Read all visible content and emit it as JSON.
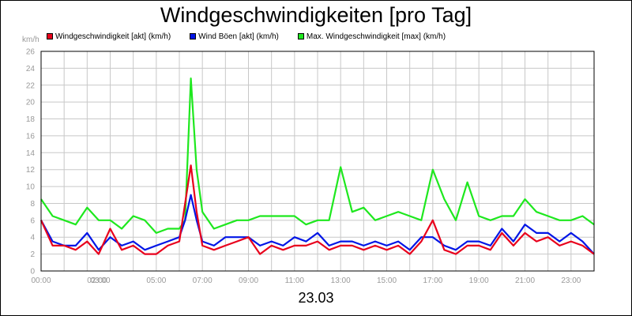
{
  "chart_data": {
    "type": "line",
    "title": "Windgeschwindigkeiten [pro Tag]",
    "ylabel": "km/h",
    "xlabel": "23.03",
    "ylim": [
      0,
      26
    ],
    "yticks": [
      0,
      2,
      4,
      6,
      8,
      10,
      12,
      14,
      16,
      18,
      20,
      22,
      24,
      26
    ],
    "xlim": [
      0,
      24
    ],
    "xticks": [
      {
        "x": 0,
        "label": "00:00"
      },
      {
        "x": 2,
        "label": "02:00"
      },
      {
        "x": 3,
        "label": "03:00"
      },
      {
        "x": 5,
        "label": "05:00"
      },
      {
        "x": 7,
        "label": "07:00"
      },
      {
        "x": 9,
        "label": "09:00"
      },
      {
        "x": 11,
        "label": "11:00"
      },
      {
        "x": 13,
        "label": "13:00"
      },
      {
        "x": 15,
        "label": "15:00"
      },
      {
        "x": 17,
        "label": "17:00"
      },
      {
        "x": 19,
        "label": "19:00"
      },
      {
        "x": 21,
        "label": "21:00"
      },
      {
        "x": 23,
        "label": "23:00"
      }
    ],
    "grid": true,
    "legend_position": "top-left",
    "x": [
      0,
      0.5,
      1,
      1.5,
      2,
      2.5,
      3,
      3.5,
      4,
      4.5,
      5,
      5.5,
      6,
      6.25,
      6.5,
      6.75,
      7,
      7.5,
      8,
      8.5,
      9,
      9.5,
      10,
      10.5,
      11,
      11.5,
      12,
      12.5,
      13,
      13.5,
      14,
      14.5,
      15,
      15.5,
      16,
      16.5,
      17,
      17.5,
      18,
      18.5,
      19,
      19.5,
      20,
      20.5,
      21,
      21.5,
      22,
      22.5,
      23,
      23.5,
      24
    ],
    "series": [
      {
        "name": "Windgeschwindigkeit [akt] (km/h)",
        "color": "#e8001c",
        "values": [
          6,
          3,
          3,
          2.5,
          3.5,
          2,
          5,
          2.5,
          3,
          2,
          2,
          3,
          3.5,
          8,
          12.5,
          7,
          3,
          2.5,
          3,
          3.5,
          4,
          2,
          3,
          2.5,
          3,
          3,
          3.5,
          2.5,
          3,
          3,
          2.5,
          3,
          2.5,
          3,
          2,
          3.5,
          6,
          2.5,
          2,
          3,
          3,
          2.5,
          4.5,
          3,
          4.5,
          3.5,
          4,
          3,
          3.5,
          3,
          2
        ]
      },
      {
        "name": "Wind Böen [akt] (km/h)",
        "color": "#0015e6",
        "values": [
          6,
          3.5,
          3,
          3,
          4.5,
          2.5,
          4,
          3,
          3.5,
          2.5,
          3,
          3.5,
          4,
          6,
          9,
          6,
          3.5,
          3,
          4,
          4,
          4,
          3,
          3.5,
          3,
          4,
          3.5,
          4.5,
          3,
          3.5,
          3.5,
          3,
          3.5,
          3,
          3.5,
          2.5,
          4,
          4,
          3,
          2.5,
          3.5,
          3.5,
          3,
          5,
          3.5,
          5.5,
          4.5,
          4.5,
          3.5,
          4.5,
          3.5,
          2
        ]
      },
      {
        "name": "Max. Windgeschwindigkeit [max] (km/h)",
        "color": "#1ee81e",
        "values": [
          8.5,
          6.5,
          6,
          5.5,
          7.5,
          6,
          6,
          5,
          6.5,
          6,
          4.5,
          5,
          5,
          6,
          22.8,
          12,
          7,
          5,
          5.5,
          6,
          6,
          6.5,
          6.5,
          6.5,
          6.5,
          5.5,
          6,
          6,
          12.3,
          7,
          7.5,
          6,
          6.5,
          7,
          6.5,
          6,
          12,
          8.5,
          6,
          10.5,
          6.5,
          6,
          6.5,
          6.5,
          8.5,
          7,
          6.5,
          6,
          6,
          6.5,
          5.5
        ]
      }
    ]
  }
}
